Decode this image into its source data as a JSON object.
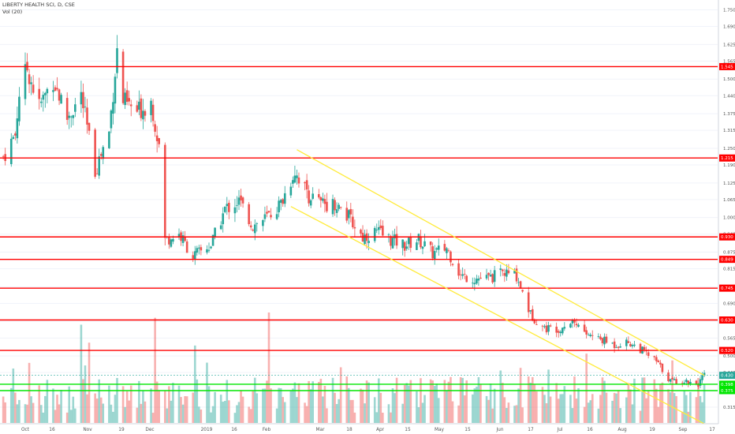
{
  "header": {
    "symbol_line": "LIBERTY HEALTH SCI, D, CSE",
    "volume_line": "Vol (20)"
  },
  "chart_data": {
    "type": "candlestick",
    "symbol": "LIBERTY HEALTH SCI",
    "interval": "D",
    "exchange": "CSE",
    "ylim": [
      0.225,
      1.775
    ],
    "y_ticks": [
      "1.750",
      "1.690",
      "1.625",
      "1.565",
      "1.500",
      "1.440",
      "1.375",
      "1.315",
      "1.250",
      "1.190",
      "1.125",
      "1.065",
      "1.000",
      "0.940",
      "0.875",
      "0.815",
      "0.750",
      "0.690",
      "0.625",
      "0.565",
      "0.500",
      "0.440",
      "0.375",
      "0.315",
      "0.250"
    ],
    "x_ticks": [
      "Oct",
      "16",
      "Nov",
      "19",
      "Dec",
      "2019",
      "16",
      "Feb",
      "Mar",
      "18",
      "Apr",
      "15",
      "May",
      "15",
      "Jun",
      "17",
      "Jul",
      "16",
      "Aug",
      "19",
      "Sep",
      "17"
    ],
    "colors": {
      "up": "#26a69a",
      "down": "#ef5350",
      "level": "#ff0000",
      "support": "#00e600",
      "channel": "#ffeb3b"
    },
    "horizontal_levels": [
      {
        "price": 1.545,
        "label": "1.545",
        "color": "#ff0000"
      },
      {
        "price": 1.215,
        "label": "1.215",
        "color": "#ff0000"
      },
      {
        "price": 0.93,
        "label": "0.930",
        "color": "#ff0000"
      },
      {
        "price": 0.849,
        "label": "0.849",
        "color": "#ff0000"
      },
      {
        "price": 0.745,
        "label": "0.745",
        "color": "#ff0000"
      },
      {
        "price": 0.63,
        "label": "0.630",
        "color": "#ff0000"
      },
      {
        "price": 0.52,
        "label": "0.520",
        "color": "#ff0000"
      },
      {
        "price": 0.398,
        "label": "0.398",
        "color": "#00e600"
      },
      {
        "price": 0.375,
        "label": "0.375",
        "color": "#00e600"
      }
    ],
    "last_price": {
      "price": 0.43,
      "label": "0.430"
    },
    "channel_lines": [
      {
        "from": {
          "date": "2019-02-14",
          "price": 1.245
        },
        "to": {
          "date": "2019-09-06",
          "price": 0.43
        }
      },
      {
        "from": {
          "date": "2019-02-11",
          "price": 1.04
        },
        "to": {
          "date": "2019-09-06",
          "price": 0.255
        }
      }
    ],
    "price_anchors": [
      [
        "2018-09-20",
        1.22
      ],
      [
        "2018-09-26",
        1.3
      ],
      [
        "2018-09-28",
        1.45
      ],
      [
        "2018-10-02",
        1.54
      ],
      [
        "2018-10-08",
        1.4
      ],
      [
        "2018-10-15",
        1.5
      ],
      [
        "2018-10-22",
        1.36
      ],
      [
        "2018-10-29",
        1.44
      ],
      [
        "2018-11-05",
        1.17
      ],
      [
        "2018-11-12",
        1.31
      ],
      [
        "2018-11-16",
        1.6
      ],
      [
        "2018-11-19",
        1.42
      ],
      [
        "2018-11-26",
        1.38
      ],
      [
        "2018-12-03",
        1.42
      ],
      [
        "2018-12-07",
        1.26
      ],
      [
        "2018-12-10",
        0.92
      ],
      [
        "2018-12-17",
        0.94
      ],
      [
        "2018-12-24",
        0.86
      ],
      [
        "2019-01-02",
        0.9
      ],
      [
        "2019-01-09",
        1.03
      ],
      [
        "2019-01-16",
        1.06
      ],
      [
        "2019-01-23",
        0.97
      ],
      [
        "2019-01-30",
        1.0
      ],
      [
        "2019-02-06",
        1.05
      ],
      [
        "2019-02-13",
        1.17
      ],
      [
        "2019-02-20",
        1.08
      ],
      [
        "2019-02-26",
        1.05
      ],
      [
        "2019-03-05",
        1.05
      ],
      [
        "2019-03-12",
        1.0
      ],
      [
        "2019-03-19",
        0.93
      ],
      [
        "2019-03-26",
        0.95
      ],
      [
        "2019-04-02",
        0.92
      ],
      [
        "2019-04-09",
        0.9
      ],
      [
        "2019-04-16",
        0.92
      ],
      [
        "2019-04-23",
        0.87
      ],
      [
        "2019-04-30",
        0.89
      ],
      [
        "2019-05-07",
        0.79
      ],
      [
        "2019-05-14",
        0.78
      ],
      [
        "2019-05-21",
        0.78
      ],
      [
        "2019-05-28",
        0.8
      ],
      [
        "2019-06-04",
        0.79
      ],
      [
        "2019-06-11",
        0.65
      ],
      [
        "2019-06-18",
        0.6
      ],
      [
        "2019-06-25",
        0.6
      ],
      [
        "2019-07-02",
        0.63
      ],
      [
        "2019-07-09",
        0.58
      ],
      [
        "2019-07-16",
        0.56
      ],
      [
        "2019-07-23",
        0.54
      ],
      [
        "2019-07-30",
        0.55
      ],
      [
        "2019-08-06",
        0.52
      ],
      [
        "2019-08-13",
        0.48
      ],
      [
        "2019-08-20",
        0.41
      ],
      [
        "2019-08-27",
        0.41
      ],
      [
        "2019-09-03",
        0.4
      ],
      [
        "2019-09-06",
        0.43
      ]
    ],
    "series": [
      {
        "name": "Vol (20)",
        "type": "volume"
      }
    ]
  }
}
